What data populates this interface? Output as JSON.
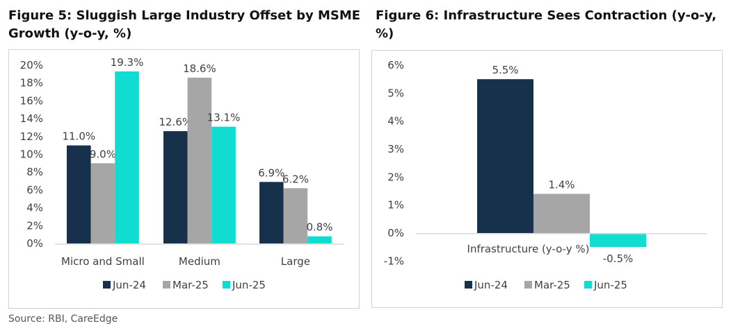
{
  "figure5_title": "Figure 5: Sluggish Large Industry Offset by MSME Growth (y-o-y, %)",
  "figure6_title": "Figure 6: Infrastructure Sees Contraction (y-o-y, %)",
  "source": "Source: RBI, CareEdge",
  "colors": {
    "Jun-24": "#17314d",
    "Mar-25": "#a6a6a6",
    "Jun-25": "#10dcd2",
    "axis": "#d9d9d9"
  },
  "chart_data": [
    {
      "type": "bar",
      "title": "Figure 5: Sluggish Large Industry Offset by MSME Growth (y-o-y, %)",
      "categories": [
        "Micro and Small",
        "Medium",
        "Large"
      ],
      "series": [
        {
          "name": "Jun-24",
          "values": [
            11.0,
            12.6,
            6.9
          ]
        },
        {
          "name": "Mar-25",
          "values": [
            9.0,
            18.6,
            6.2
          ]
        },
        {
          "name": "Jun-25",
          "values": [
            19.3,
            13.1,
            0.8
          ]
        }
      ],
      "data_labels": [
        [
          "11.0%",
          "12.6%",
          "6.9%"
        ],
        [
          "9.0%",
          "18.6%",
          "6.2%"
        ],
        [
          "19.3%",
          "13.1%",
          "0.8%"
        ]
      ],
      "yticks": [
        "0%",
        "2%",
        "4%",
        "6%",
        "8%",
        "10%",
        "12%",
        "14%",
        "16%",
        "18%",
        "20%"
      ],
      "ylim": [
        0,
        20
      ],
      "grid": false,
      "legend": "bottom"
    },
    {
      "type": "bar",
      "title": "Figure 6: Infrastructure Sees Contraction (y-o-y, %)",
      "categories": [
        "Infrastructure (y-o-y %)"
      ],
      "series": [
        {
          "name": "Jun-24",
          "values": [
            5.5
          ]
        },
        {
          "name": "Mar-25",
          "values": [
            1.4
          ]
        },
        {
          "name": "Jun-25",
          "values": [
            -0.5
          ]
        }
      ],
      "data_labels": [
        [
          "5.5%"
        ],
        [
          "1.4%"
        ],
        [
          "-0.5%"
        ]
      ],
      "yticks": [
        "-1%",
        "0%",
        "1%",
        "2%",
        "3%",
        "4%",
        "5%",
        "6%"
      ],
      "ylim": [
        -1,
        6
      ],
      "grid": false,
      "legend": "bottom"
    }
  ]
}
